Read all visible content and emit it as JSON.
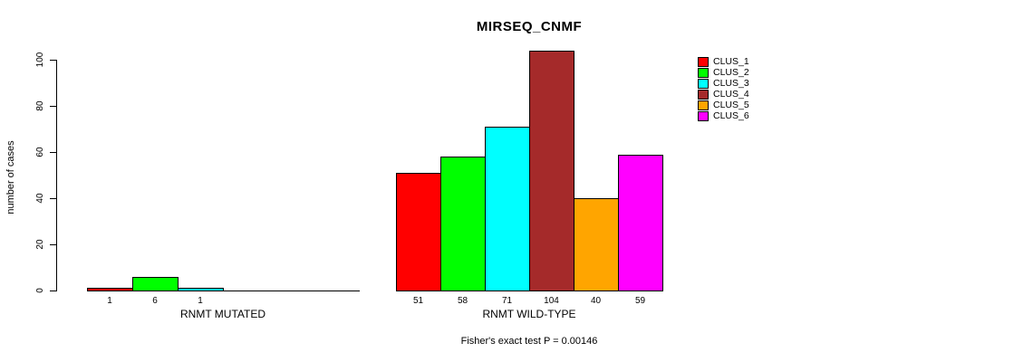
{
  "chart_data": {
    "type": "bar",
    "title": "MIRSEQ_CNMF",
    "ylabel": "number of cases",
    "xlabel": "",
    "ylim": [
      0,
      100
    ],
    "yticks": [
      0,
      20,
      40,
      60,
      80,
      100
    ],
    "grid": false,
    "legend_position": "right",
    "categories": [
      "RNMT MUTATED",
      "RNMT WILD-TYPE"
    ],
    "groups": [
      {
        "label": "RNMT MUTATED",
        "values": [
          1,
          6,
          1,
          0,
          0,
          0
        ]
      },
      {
        "label": "RNMT WILD-TYPE",
        "values": [
          51,
          58,
          71,
          104,
          40,
          59
        ]
      }
    ],
    "series": [
      {
        "name": "CLUS_1",
        "color": "#FF0000"
      },
      {
        "name": "CLUS_2",
        "color": "#00FF00"
      },
      {
        "name": "CLUS_3",
        "color": "#00FFFF"
      },
      {
        "name": "CLUS_4",
        "color": "#A52A2A"
      },
      {
        "name": "CLUS_5",
        "color": "#FFA500"
      },
      {
        "name": "CLUS_6",
        "color": "#FF00FF"
      }
    ],
    "bar_value_labels_shown": true,
    "zero_bars_unlabeled": true,
    "annotation": "Fisher's exact test P = 0.00146",
    "axis_color": "#000000",
    "bar_border_color": "#000000"
  }
}
